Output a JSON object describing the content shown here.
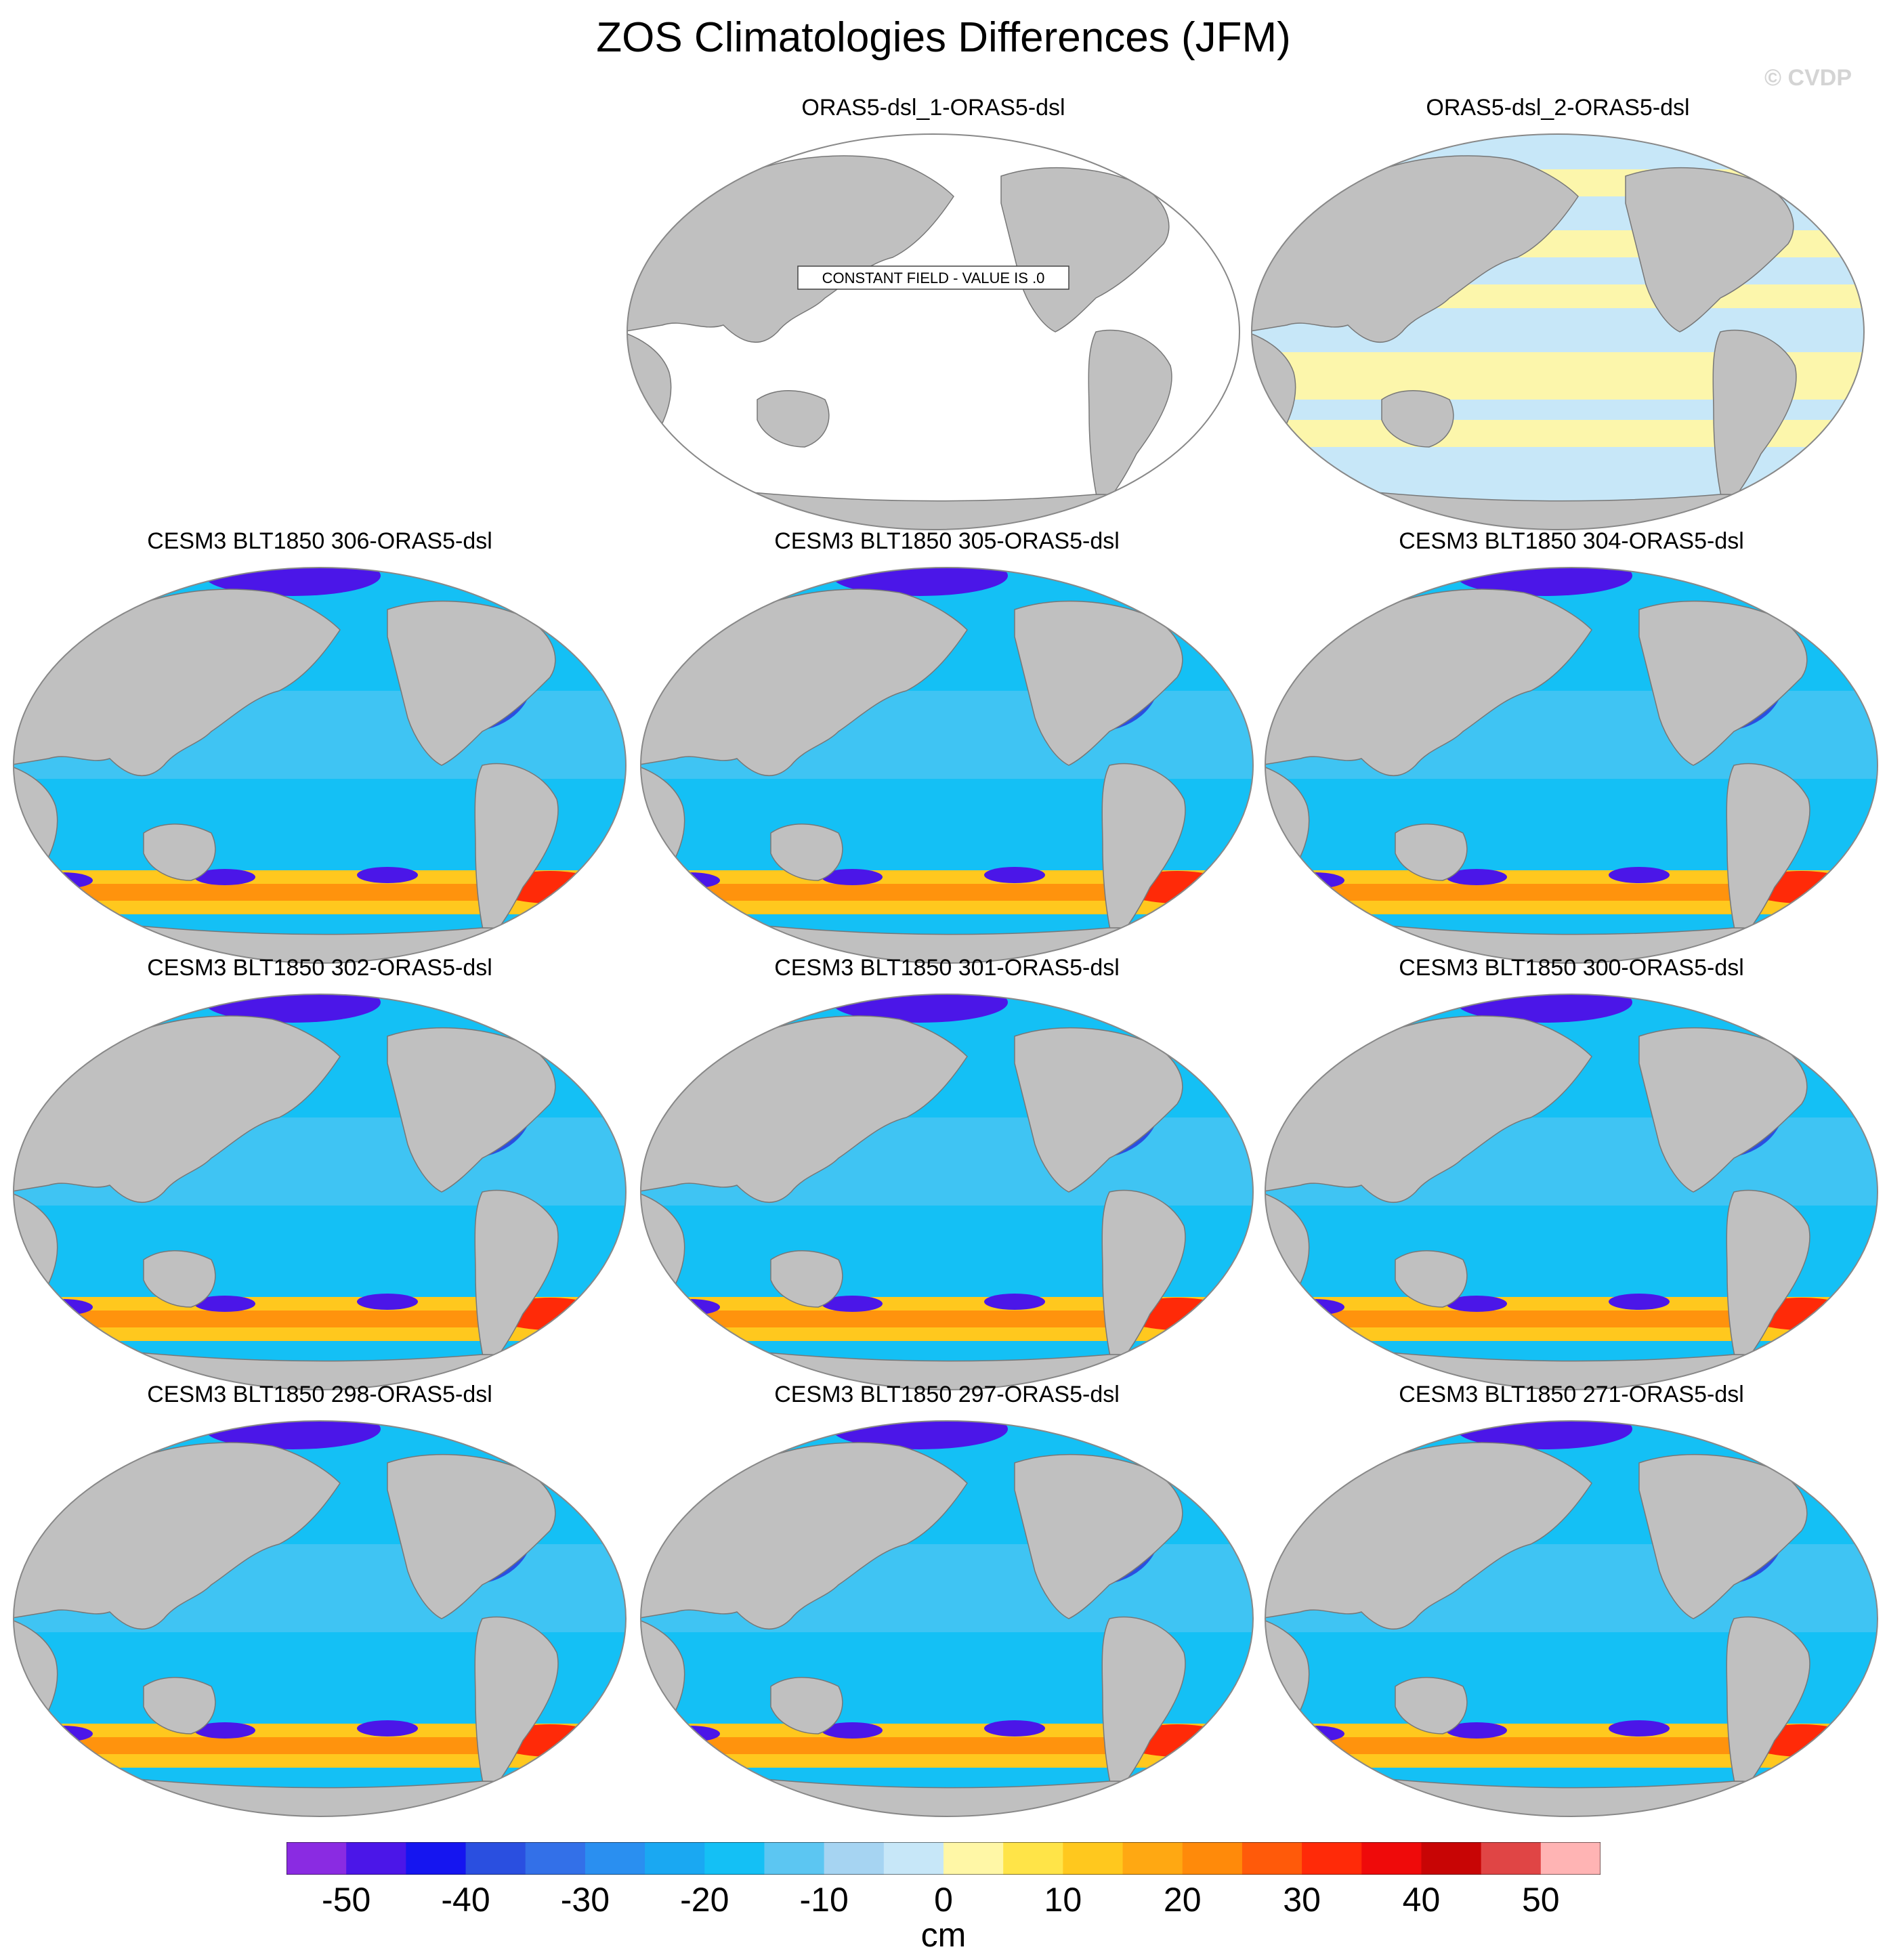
{
  "figure": {
    "title": "ZOS Climatologies Differences (JFM)",
    "credit": "© CVDP"
  },
  "panels": [
    {
      "title": "ORAS5-dsl_1-ORAS5-dsl",
      "kind": "constant",
      "note": "CONSTANT FIELD - VALUE IS .0"
    },
    {
      "title": "ORAS5-dsl_2-ORAS5-dsl",
      "kind": "near-zero"
    },
    {
      "title": "CESM3 BLT1850 306-ORAS5-dsl",
      "kind": "model"
    },
    {
      "title": "CESM3 BLT1850 305-ORAS5-dsl",
      "kind": "model"
    },
    {
      "title": "CESM3 BLT1850 304-ORAS5-dsl",
      "kind": "model"
    },
    {
      "title": "CESM3 BLT1850 302-ORAS5-dsl",
      "kind": "model"
    },
    {
      "title": "CESM3 BLT1850 301-ORAS5-dsl",
      "kind": "model"
    },
    {
      "title": "CESM3 BLT1850 300-ORAS5-dsl",
      "kind": "model"
    },
    {
      "title": "CESM3 BLT1850 298-ORAS5-dsl",
      "kind": "model"
    },
    {
      "title": "CESM3 BLT1850 297-ORAS5-dsl",
      "kind": "model"
    },
    {
      "title": "CESM3 BLT1850 271-ORAS5-dsl",
      "kind": "model"
    }
  ],
  "colorbar": {
    "unit": "cm",
    "tick_labels": [
      "-50",
      "-40",
      "-30",
      "-20",
      "-10",
      "0",
      "10",
      "20",
      "30",
      "40",
      "50"
    ],
    "colors": [
      "#8a2be2",
      "#4b16e8",
      "#1515f0",
      "#2a4fe0",
      "#3370e8",
      "#2a8ff0",
      "#1aa8f2",
      "#14c0f5",
      "#5cc6f2",
      "#a6d4f2",
      "#c7e7f8",
      "#fff7a6",
      "#ffe448",
      "#ffc81e",
      "#ffa812",
      "#ff8a0a",
      "#ff5a0a",
      "#ff2a08",
      "#ef0a0a",
      "#c80505",
      "#e04545",
      "#ffb4b4"
    ]
  },
  "map_colors": {
    "land": "#c0c0c0",
    "coast": "#777777",
    "ocean_constant": "#ffffff"
  }
}
